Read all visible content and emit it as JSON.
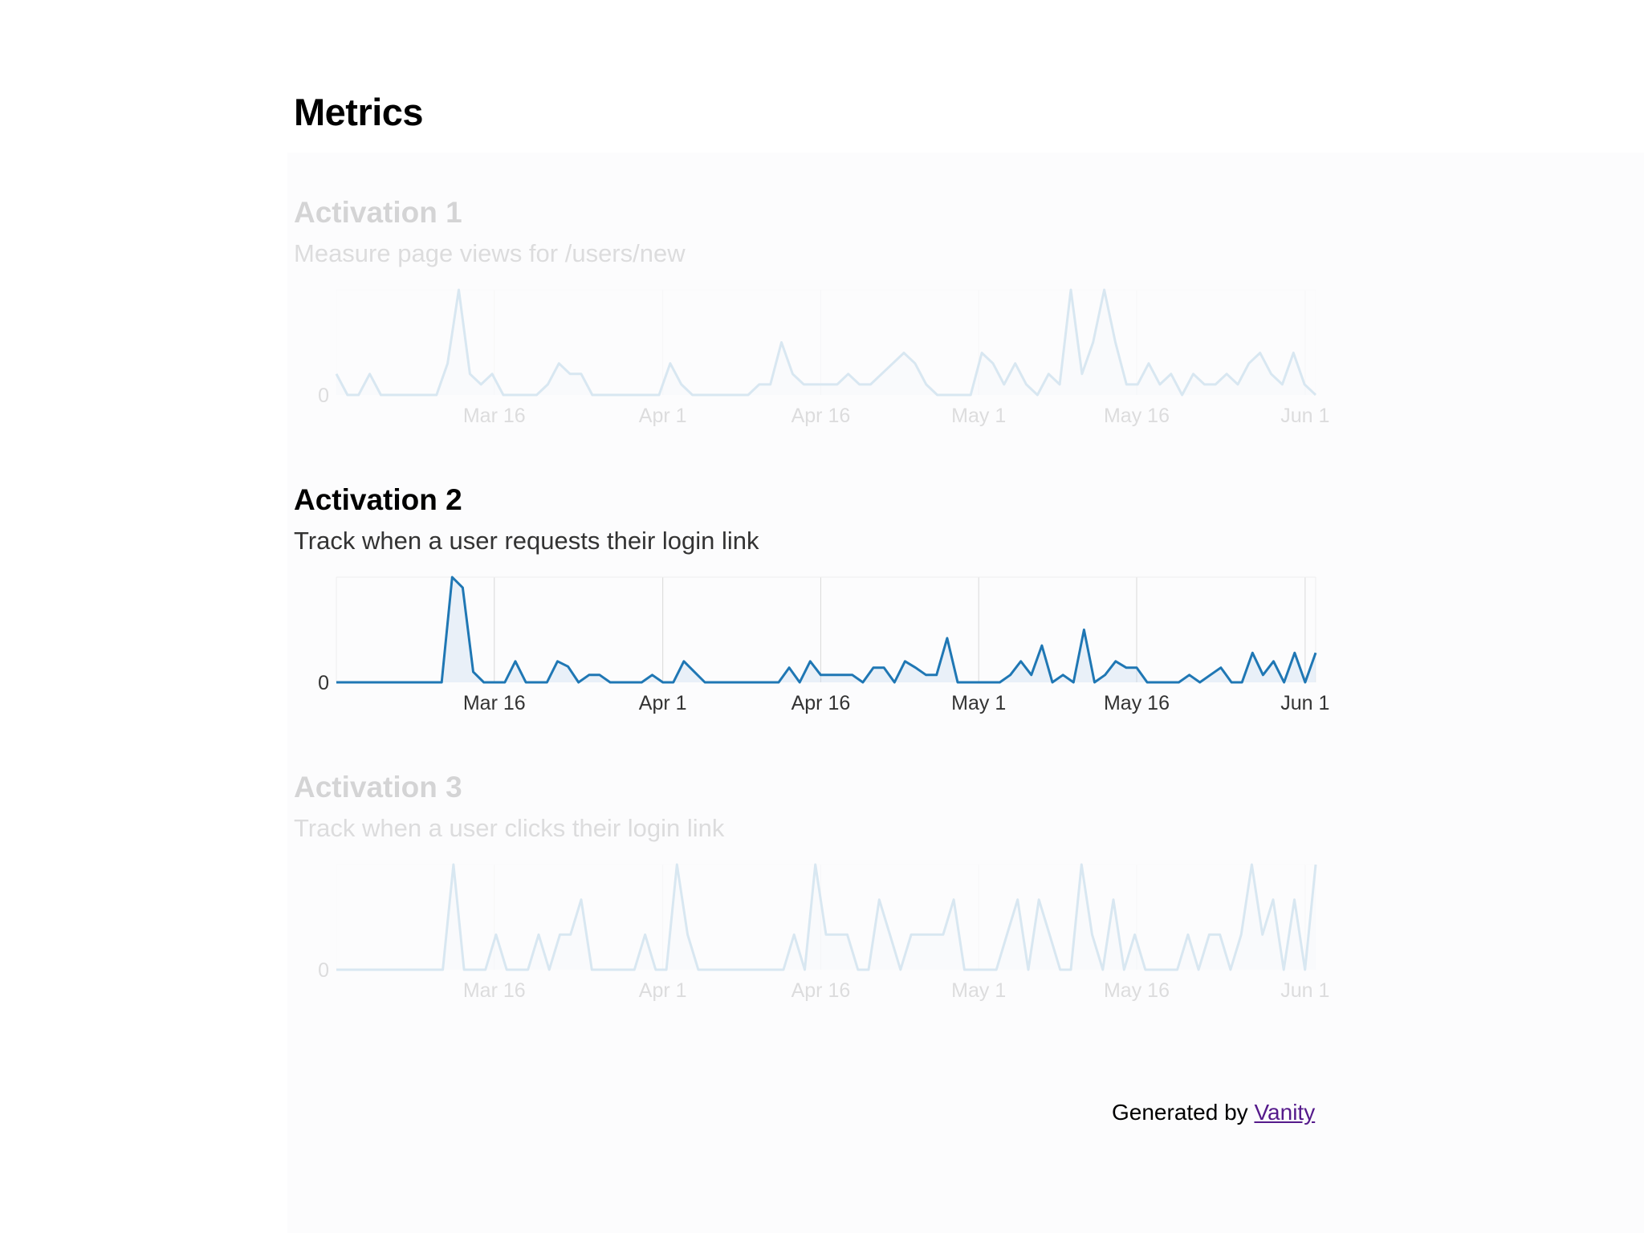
{
  "page": {
    "title": "Metrics"
  },
  "metrics": [
    {
      "name": "Activation 1",
      "description": "Measure page views for /users/new",
      "active": false
    },
    {
      "name": "Activation 2",
      "description": "Track when a user requests their login link",
      "active": true
    },
    {
      "name": "Activation 3",
      "description": "Track when a user clicks their login link",
      "active": false
    }
  ],
  "footer": {
    "prefix": "Generated by ",
    "link_text": "Vanity"
  },
  "colors": {
    "line": "#1f77b4",
    "fill": "#c6dbef",
    "grid": "#d9d9d9",
    "axis_text": "#333333"
  },
  "chart_data": [
    {
      "type": "line",
      "series_index": 0,
      "x_start": "2013-03-01",
      "x_end": "2013-06-02",
      "y_tick_labels": [
        "0"
      ],
      "x_ticks": [
        {
          "date": "2013-03-16",
          "label": "Mar 16"
        },
        {
          "date": "2013-04-01",
          "label": "Apr 1"
        },
        {
          "date": "2013-04-16",
          "label": "Apr 16"
        },
        {
          "date": "2013-05-01",
          "label": "May 1"
        },
        {
          "date": "2013-05-16",
          "label": "May 16"
        },
        {
          "date": "2013-06-01",
          "label": "Jun 1"
        }
      ],
      "values": [
        2,
        0,
        0,
        2,
        0,
        0,
        0,
        0,
        0,
        0,
        3,
        10,
        2,
        1,
        2,
        0,
        0,
        0,
        0,
        1,
        3,
        2,
        2,
        0,
        0,
        0,
        0,
        0,
        0,
        0,
        3,
        1,
        0,
        0,
        0,
        0,
        0,
        0,
        1,
        1,
        5,
        2,
        1,
        1,
        1,
        1,
        2,
        1,
        1,
        2,
        3,
        4,
        3,
        1,
        0,
        0,
        0,
        0,
        4,
        3,
        1,
        3,
        1,
        0,
        2,
        1,
        10,
        2,
        5,
        10,
        5,
        1,
        1,
        3,
        1,
        2,
        0,
        2,
        1,
        1,
        2,
        1,
        3,
        4,
        2,
        1,
        4,
        1,
        0
      ],
      "ylim": [
        0,
        10
      ],
      "grid": true
    },
    {
      "type": "line",
      "series_index": 1,
      "x_start": "2013-03-01",
      "x_end": "2013-06-02",
      "y_tick_labels": [
        "0"
      ],
      "x_ticks": [
        {
          "date": "2013-03-16",
          "label": "Mar 16"
        },
        {
          "date": "2013-04-01",
          "label": "Apr 1"
        },
        {
          "date": "2013-04-16",
          "label": "Apr 16"
        },
        {
          "date": "2013-05-01",
          "label": "May 1"
        },
        {
          "date": "2013-05-16",
          "label": "May 16"
        },
        {
          "date": "2013-06-01",
          "label": "Jun 1"
        }
      ],
      "values": [
        0,
        0,
        0,
        0,
        0,
        0,
        0,
        0,
        0,
        0,
        0,
        10,
        9,
        1,
        0,
        0,
        0,
        2,
        0,
        0,
        0,
        2,
        1.5,
        0,
        0.7,
        0.7,
        0,
        0,
        0,
        0,
        0.7,
        0,
        0,
        2,
        1,
        0,
        0,
        0,
        0,
        0,
        0,
        0,
        0,
        1.4,
        0,
        2,
        0.7,
        0.7,
        0.7,
        0.7,
        0,
        1.4,
        1.4,
        0,
        2,
        1.4,
        0.7,
        0.7,
        4.2,
        0,
        0,
        0,
        0,
        0,
        0.7,
        2,
        0.7,
        3.5,
        0,
        0.7,
        0,
        5,
        0,
        0.7,
        2,
        1.4,
        1.4,
        0,
        0,
        0,
        0,
        0.7,
        0,
        0.7,
        1.4,
        0,
        0,
        2.8,
        0.7,
        2,
        0,
        2.8,
        0,
        2.8
      ],
      "ylim": [
        0,
        10
      ],
      "grid": true
    },
    {
      "type": "line",
      "series_index": 2,
      "x_start": "2013-03-01",
      "x_end": "2013-06-02",
      "y_tick_labels": [
        "0"
      ],
      "x_ticks": [
        {
          "date": "2013-03-16",
          "label": "Mar 16"
        },
        {
          "date": "2013-04-01",
          "label": "Apr 1"
        },
        {
          "date": "2013-04-16",
          "label": "Apr 16"
        },
        {
          "date": "2013-05-01",
          "label": "May 1"
        },
        {
          "date": "2013-05-16",
          "label": "May 16"
        },
        {
          "date": "2013-06-01",
          "label": "Jun 1"
        }
      ],
      "values": [
        0,
        0,
        0,
        0,
        0,
        0,
        0,
        0,
        0,
        0,
        0,
        3,
        0,
        0,
        0,
        1,
        0,
        0,
        0,
        1,
        0,
        1,
        1,
        2,
        0,
        0,
        0,
        0,
        0,
        1,
        0,
        0,
        3,
        1,
        0,
        0,
        0,
        0,
        0,
        0,
        0,
        0,
        0,
        1,
        0,
        3,
        1,
        1,
        1,
        0,
        0,
        2,
        1,
        0,
        1,
        1,
        1,
        1,
        2,
        0,
        0,
        0,
        0,
        1,
        2,
        0,
        2,
        1,
        0,
        0,
        3,
        1,
        0,
        2,
        0,
        1,
        0,
        0,
        0,
        0,
        1,
        0,
        1,
        1,
        0,
        1,
        3,
        1,
        2,
        0,
        2,
        0,
        3
      ],
      "ylim": [
        0,
        3
      ],
      "grid": true
    }
  ]
}
